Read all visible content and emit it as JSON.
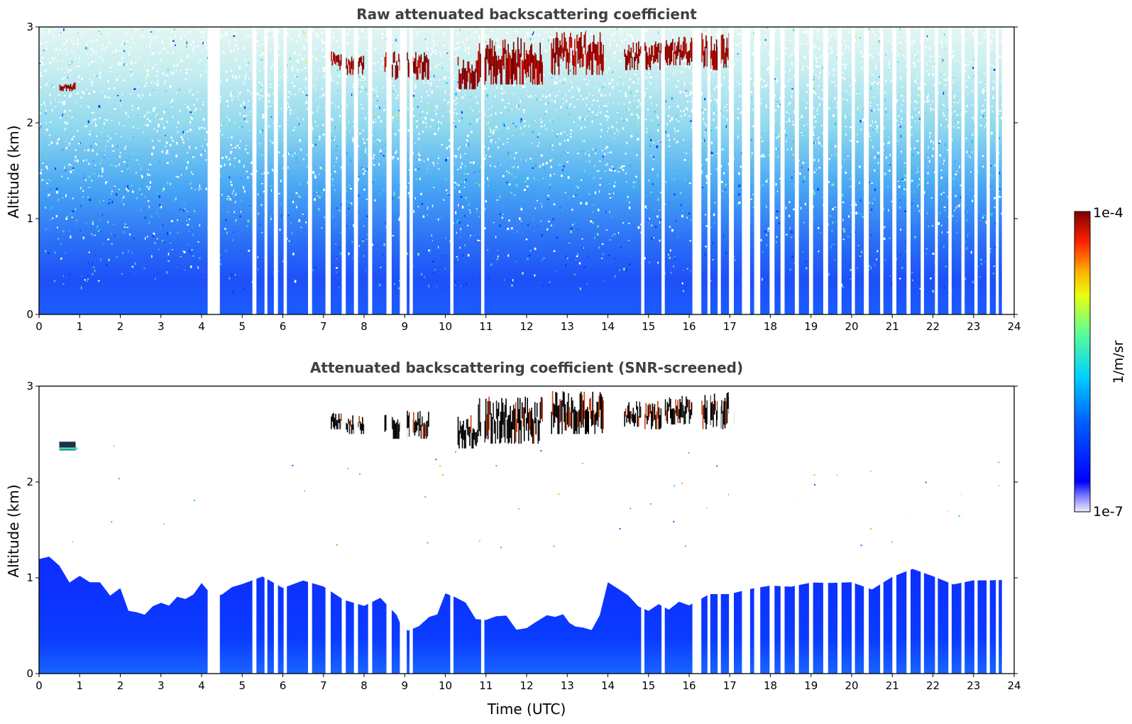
{
  "chart_data": [
    {
      "type": "heatmap",
      "title": "Raw attenuated backscattering coefficient",
      "xlabel": "",
      "ylabel": "Altitude (km)",
      "xlim": [
        0,
        24
      ],
      "ylim": [
        0,
        3
      ],
      "xticks": [
        "0",
        "1",
        "2",
        "3",
        "4",
        "5",
        "6",
        "7",
        "8",
        "9",
        "10",
        "11",
        "12",
        "13",
        "14",
        "15",
        "16",
        "17",
        "18",
        "19",
        "20",
        "21",
        "22",
        "23",
        "24"
      ],
      "yticks": [
        "0",
        "1",
        "2",
        "3"
      ],
      "data_gaps_hours": [
        [
          4.15,
          4.45
        ],
        [
          5.25,
          5.35
        ],
        [
          5.55,
          5.62
        ],
        [
          5.78,
          5.88
        ],
        [
          6.02,
          6.1
        ],
        [
          6.62,
          6.72
        ],
        [
          7.05,
          7.18
        ],
        [
          7.45,
          7.55
        ],
        [
          7.75,
          7.85
        ],
        [
          8.1,
          8.2
        ],
        [
          8.55,
          8.68
        ],
        [
          8.88,
          9.05
        ],
        [
          9.12,
          9.2
        ],
        [
          10.12,
          10.2
        ],
        [
          10.88,
          10.96
        ],
        [
          14.82,
          14.9
        ],
        [
          15.32,
          15.4
        ],
        [
          16.08,
          16.3
        ],
        [
          16.45,
          16.52
        ],
        [
          16.7,
          16.78
        ],
        [
          16.98,
          17.1
        ],
        [
          17.3,
          17.5
        ],
        [
          17.6,
          17.75
        ],
        [
          17.98,
          18.1
        ],
        [
          18.25,
          18.35
        ],
        [
          18.6,
          18.7
        ],
        [
          18.95,
          19.05
        ],
        [
          19.3,
          19.42
        ],
        [
          19.65,
          19.75
        ],
        [
          20.0,
          20.08
        ],
        [
          20.3,
          20.42
        ],
        [
          20.7,
          20.78
        ],
        [
          21.0,
          21.1
        ],
        [
          21.35,
          21.45
        ],
        [
          21.7,
          21.78
        ],
        [
          22.05,
          22.12
        ],
        [
          22.38,
          22.46
        ],
        [
          22.7,
          22.78
        ],
        [
          23.02,
          23.1
        ],
        [
          23.32,
          23.4
        ],
        [
          23.55,
          23.62
        ]
      ],
      "cloud_layers": [
        {
          "x": [
            0.5,
            0.9
          ],
          "y": [
            2.33,
            2.42
          ]
        },
        {
          "x": [
            7.1,
            7.5
          ],
          "y": [
            2.55,
            2.75
          ]
        },
        {
          "x": [
            7.55,
            8.0
          ],
          "y": [
            2.5,
            2.7
          ]
        },
        {
          "x": [
            8.5,
            9.6
          ],
          "y": [
            2.45,
            2.75
          ]
        },
        {
          "x": [
            10.3,
            10.8
          ],
          "y": [
            2.35,
            2.7
          ]
        },
        {
          "x": [
            10.8,
            12.4
          ],
          "y": [
            2.4,
            2.9
          ]
        },
        {
          "x": [
            12.6,
            13.9
          ],
          "y": [
            2.5,
            2.95
          ]
        },
        {
          "x": [
            14.4,
            15.4
          ],
          "y": [
            2.55,
            2.85
          ]
        },
        {
          "x": [
            15.4,
            16.2
          ],
          "y": [
            2.6,
            2.9
          ]
        },
        {
          "x": [
            16.3,
            17.1
          ],
          "y": [
            2.55,
            2.95
          ]
        }
      ]
    },
    {
      "type": "heatmap",
      "title": "Attenuated backscattering coefficient (SNR-screened)",
      "xlabel": "Time (UTC)",
      "ylabel": "Altitude (km)",
      "xlim": [
        0,
        24
      ],
      "ylim": [
        0,
        3
      ],
      "xticks": [
        "0",
        "1",
        "2",
        "3",
        "4",
        "5",
        "6",
        "7",
        "8",
        "9",
        "10",
        "11",
        "12",
        "13",
        "14",
        "15",
        "16",
        "17",
        "18",
        "19",
        "20",
        "21",
        "22",
        "23",
        "24"
      ],
      "yticks": [
        "0",
        "1",
        "2",
        "3"
      ],
      "boundary_layer_top_km": [
        [
          0,
          1.15
        ],
        [
          0.5,
          1.1
        ],
        [
          1.0,
          1.0
        ],
        [
          1.5,
          0.95
        ],
        [
          2.0,
          0.85
        ],
        [
          2.4,
          0.6
        ],
        [
          2.8,
          0.75
        ],
        [
          3.2,
          0.65
        ],
        [
          3.6,
          0.8
        ],
        [
          4.0,
          0.95
        ],
        [
          4.5,
          0.85
        ],
        [
          5.0,
          0.9
        ],
        [
          6.0,
          0.95
        ],
        [
          7.0,
          0.85
        ],
        [
          8.0,
          0.75
        ],
        [
          8.8,
          0.65
        ],
        [
          9.1,
          0.45
        ],
        [
          9.6,
          0.6
        ],
        [
          10.0,
          0.8
        ],
        [
          10.5,
          0.75
        ],
        [
          11.0,
          0.55
        ],
        [
          11.5,
          0.6
        ],
        [
          12.0,
          0.45
        ],
        [
          12.5,
          0.55
        ],
        [
          12.9,
          0.6
        ],
        [
          13.2,
          0.45
        ],
        [
          13.6,
          0.5
        ],
        [
          14.0,
          0.9
        ],
        [
          14.5,
          0.85
        ],
        [
          15.0,
          0.7
        ],
        [
          15.5,
          0.65
        ],
        [
          16.0,
          0.75
        ],
        [
          17.0,
          0.85
        ],
        [
          18.0,
          0.9
        ],
        [
          19.0,
          0.95
        ],
        [
          20.0,
          0.95
        ],
        [
          21.0,
          1.0
        ],
        [
          22.0,
          1.0
        ],
        [
          23.0,
          1.0
        ],
        [
          23.7,
          0.95
        ]
      ]
    }
  ],
  "colorbar": {
    "label": "1/m/sr",
    "max_label": "1e-4",
    "min_label": "1e-7",
    "scale": "log",
    "colormap": "jet"
  }
}
